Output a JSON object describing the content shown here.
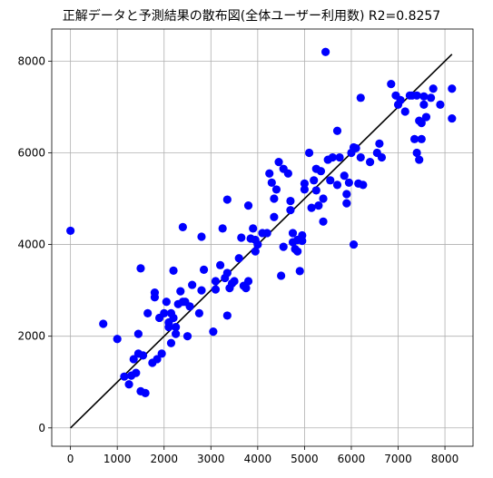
{
  "chart_data": {
    "type": "scatter",
    "title": "正解データと予測結果の散布図(全体ユーザー利用数)  R2=0.8257",
    "xlabel": "",
    "ylabel": "",
    "xlim": [
      -400,
      8600
    ],
    "ylim": [
      -400,
      8700
    ],
    "xticks": [
      0,
      1000,
      2000,
      3000,
      4000,
      5000,
      6000,
      7000,
      8000
    ],
    "yticks": [
      0,
      2000,
      4000,
      6000,
      8000
    ],
    "grid": true,
    "point_color": "#0000ff",
    "line_color": "#000000",
    "reference_line": {
      "x": [
        0,
        8150
      ],
      "y": [
        0,
        8150
      ]
    },
    "points": [
      [
        0,
        4300
      ],
      [
        700,
        2270
      ],
      [
        1000,
        1940
      ],
      [
        1150,
        1120
      ],
      [
        1250,
        950
      ],
      [
        1300,
        1140
      ],
      [
        1350,
        1500
      ],
      [
        1400,
        1200
      ],
      [
        1450,
        1620
      ],
      [
        1450,
        2050
      ],
      [
        1500,
        3480
      ],
      [
        1500,
        800
      ],
      [
        1550,
        1580
      ],
      [
        1600,
        760
      ],
      [
        1650,
        2500
      ],
      [
        1750,
        1420
      ],
      [
        1800,
        2950
      ],
      [
        1800,
        2850
      ],
      [
        1850,
        1500
      ],
      [
        1900,
        2400
      ],
      [
        1950,
        1620
      ],
      [
        2000,
        2500
      ],
      [
        2050,
        2750
      ],
      [
        2100,
        2300
      ],
      [
        2100,
        2200
      ],
      [
        2150,
        2500
      ],
      [
        2150,
        1850
      ],
      [
        2200,
        2400
      ],
      [
        2200,
        3430
      ],
      [
        2250,
        2200
      ],
      [
        2250,
        2050
      ],
      [
        2300,
        2700
      ],
      [
        2350,
        2980
      ],
      [
        2400,
        4380
      ],
      [
        2400,
        2750
      ],
      [
        2450,
        2750
      ],
      [
        2500,
        2000
      ],
      [
        2550,
        2650
      ],
      [
        2600,
        3120
      ],
      [
        2750,
        2500
      ],
      [
        2800,
        3000
      ],
      [
        2800,
        4170
      ],
      [
        2850,
        3450
      ],
      [
        3050,
        2100
      ],
      [
        3100,
        3020
      ],
      [
        3100,
        3200
      ],
      [
        3200,
        3550
      ],
      [
        3250,
        4350
      ],
      [
        3300,
        3270
      ],
      [
        3350,
        3380
      ],
      [
        3350,
        4980
      ],
      [
        3350,
        2450
      ],
      [
        3400,
        3050
      ],
      [
        3450,
        3150
      ],
      [
        3500,
        3200
      ],
      [
        3600,
        3700
      ],
      [
        3650,
        4150
      ],
      [
        3700,
        3100
      ],
      [
        3750,
        3050
      ],
      [
        3800,
        4850
      ],
      [
        3800,
        3200
      ],
      [
        3850,
        4130
      ],
      [
        3900,
        4350
      ],
      [
        3950,
        3850
      ],
      [
        3950,
        4100
      ],
      [
        4000,
        4000
      ],
      [
        4100,
        4250
      ],
      [
        4200,
        4250
      ],
      [
        4250,
        5550
      ],
      [
        4300,
        5350
      ],
      [
        4350,
        5000
      ],
      [
        4350,
        4600
      ],
      [
        4400,
        5200
      ],
      [
        4450,
        5800
      ],
      [
        4500,
        3320
      ],
      [
        4550,
        5650
      ],
      [
        4550,
        3950
      ],
      [
        4650,
        5550
      ],
      [
        4700,
        4750
      ],
      [
        4700,
        4950
      ],
      [
        4750,
        4250
      ],
      [
        4750,
        4050
      ],
      [
        4800,
        3900
      ],
      [
        4850,
        4100
      ],
      [
        4850,
        3850
      ],
      [
        4900,
        3420
      ],
      [
        4950,
        4200
      ],
      [
        4950,
        4080
      ],
      [
        5000,
        5200
      ],
      [
        5000,
        5330
      ],
      [
        5100,
        6000
      ],
      [
        5150,
        4800
      ],
      [
        5200,
        5400
      ],
      [
        5250,
        5650
      ],
      [
        5250,
        5180
      ],
      [
        5300,
        4850
      ],
      [
        5350,
        5600
      ],
      [
        5400,
        5000
      ],
      [
        5400,
        4500
      ],
      [
        5450,
        8200
      ],
      [
        5500,
        5850
      ],
      [
        5550,
        5400
      ],
      [
        5600,
        5900
      ],
      [
        5700,
        6480
      ],
      [
        5700,
        5300
      ],
      [
        5750,
        5900
      ],
      [
        5850,
        5500
      ],
      [
        5900,
        5100
      ],
      [
        5900,
        4900
      ],
      [
        5950,
        5350
      ],
      [
        6000,
        6000
      ],
      [
        6050,
        6120
      ],
      [
        6050,
        4000
      ],
      [
        6100,
        6100
      ],
      [
        6150,
        5330
      ],
      [
        6200,
        7200
      ],
      [
        6200,
        5900
      ],
      [
        6250,
        5300
      ],
      [
        6400,
        5800
      ],
      [
        6550,
        6000
      ],
      [
        6600,
        6200
      ],
      [
        6650,
        5900
      ],
      [
        6850,
        7500
      ],
      [
        6950,
        7250
      ],
      [
        7000,
        7050
      ],
      [
        7050,
        7150
      ],
      [
        7150,
        6900
      ],
      [
        7250,
        7250
      ],
      [
        7300,
        7250
      ],
      [
        7350,
        6300
      ],
      [
        7400,
        6000
      ],
      [
        7400,
        7250
      ],
      [
        7450,
        5850
      ],
      [
        7450,
        6700
      ],
      [
        7500,
        6650
      ],
      [
        7500,
        6300
      ],
      [
        7550,
        7050
      ],
      [
        7550,
        7230
      ],
      [
        7600,
        6780
      ],
      [
        7700,
        7200
      ],
      [
        7750,
        7400
      ],
      [
        7900,
        7050
      ],
      [
        8150,
        7400
      ],
      [
        8150,
        6750
      ]
    ]
  }
}
